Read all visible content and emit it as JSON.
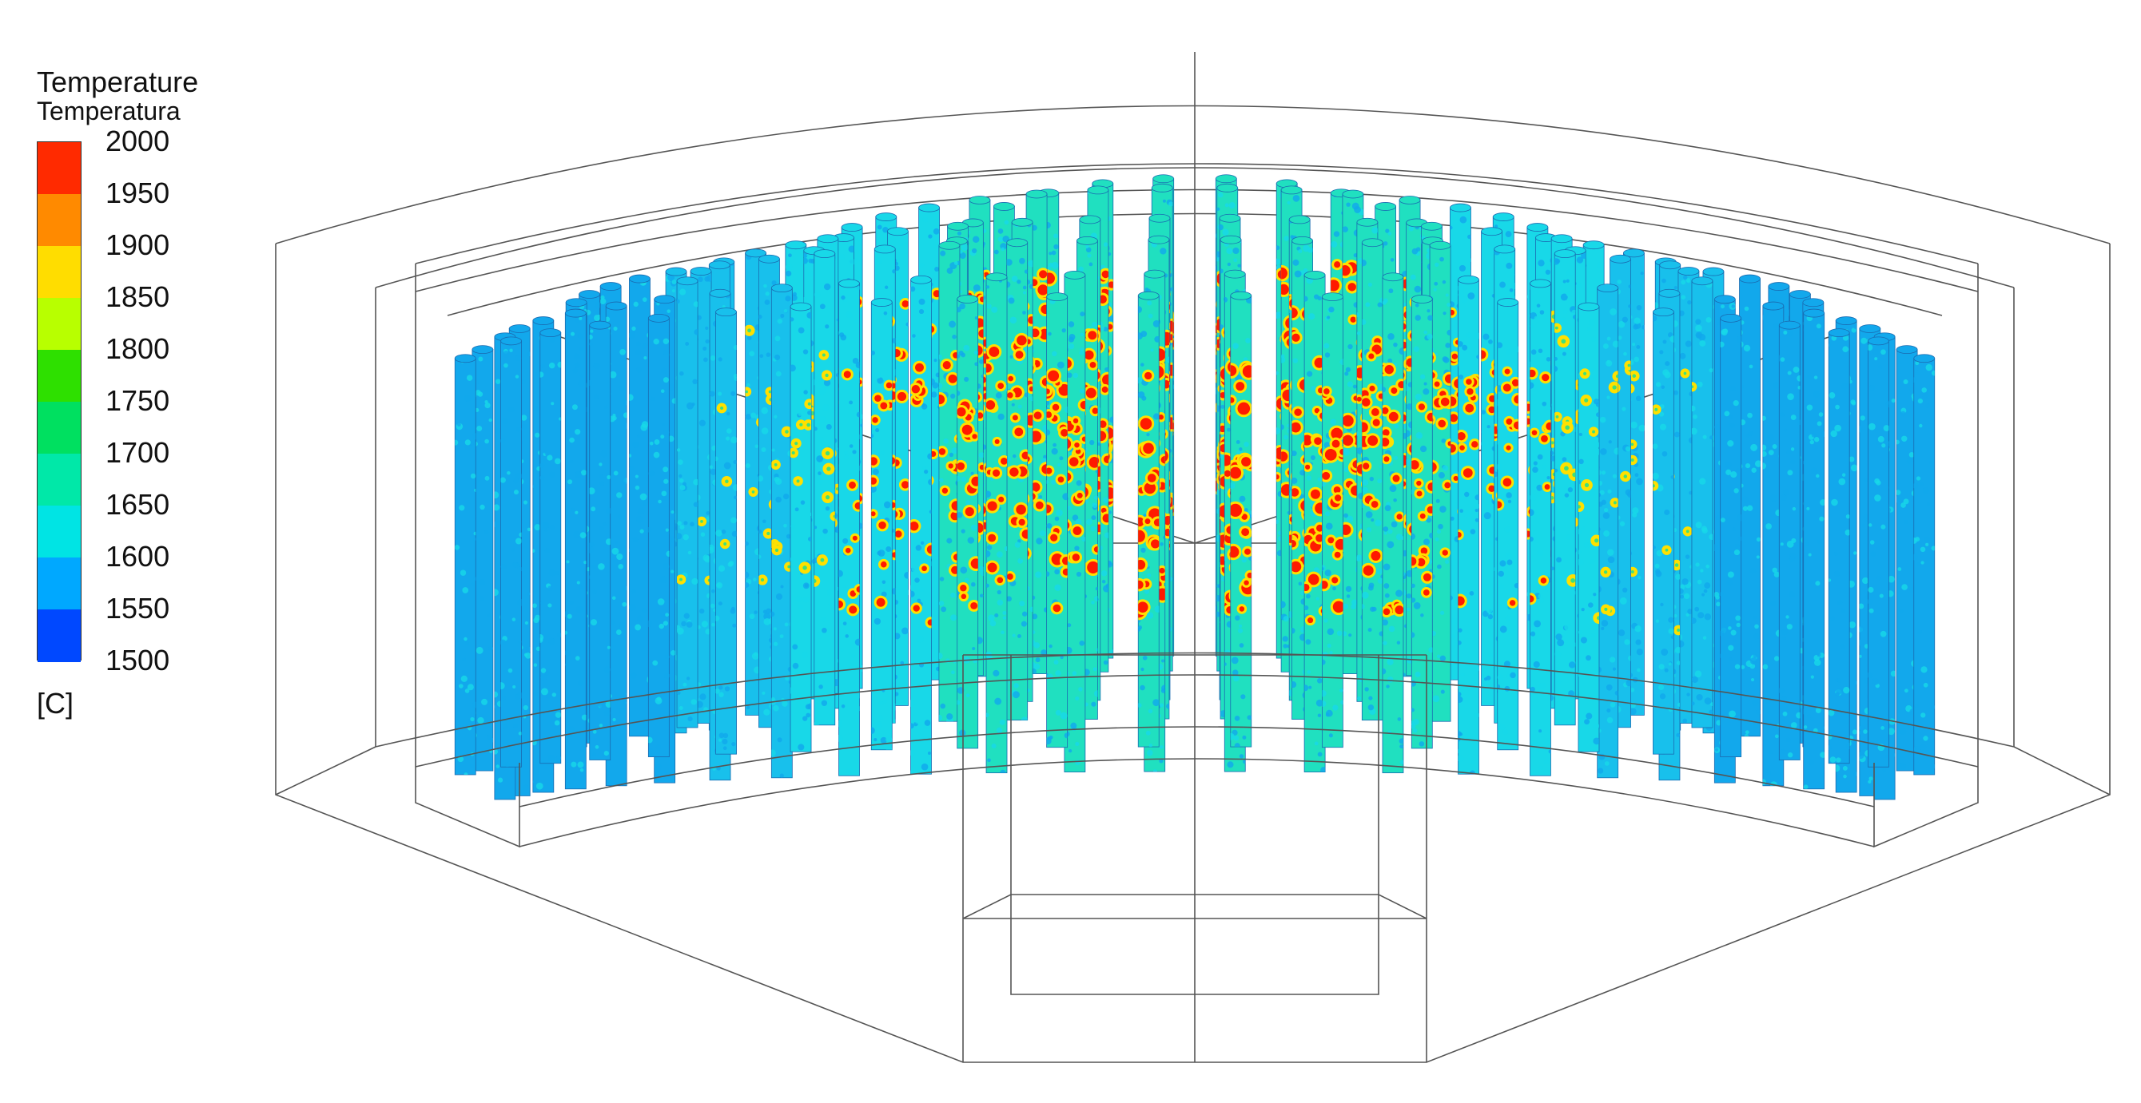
{
  "legend": {
    "title_en": "Temperature",
    "title_es": "Temperatura",
    "unit": "[C]",
    "ticks": [
      "2000",
      "1950",
      "1900",
      "1850",
      "1800",
      "1750",
      "1700",
      "1650",
      "1600",
      "1550",
      "1500"
    ],
    "colors": [
      "#ff2a00",
      "#ff8a00",
      "#ffdd00",
      "#b8ff00",
      "#2ee000",
      "#00e060",
      "#00e8a8",
      "#00e4e4",
      "#00a8ff",
      "#0048ff"
    ]
  },
  "palette": {
    "hot": "#ff1a00",
    "warm": "#ffe000",
    "mid": "#40e07a",
    "teal": "#20e0c0",
    "cyan": "#18d8e8",
    "cool": "#12a8ec",
    "edge": "#1a6ab0",
    "frame": "#555555"
  }
}
